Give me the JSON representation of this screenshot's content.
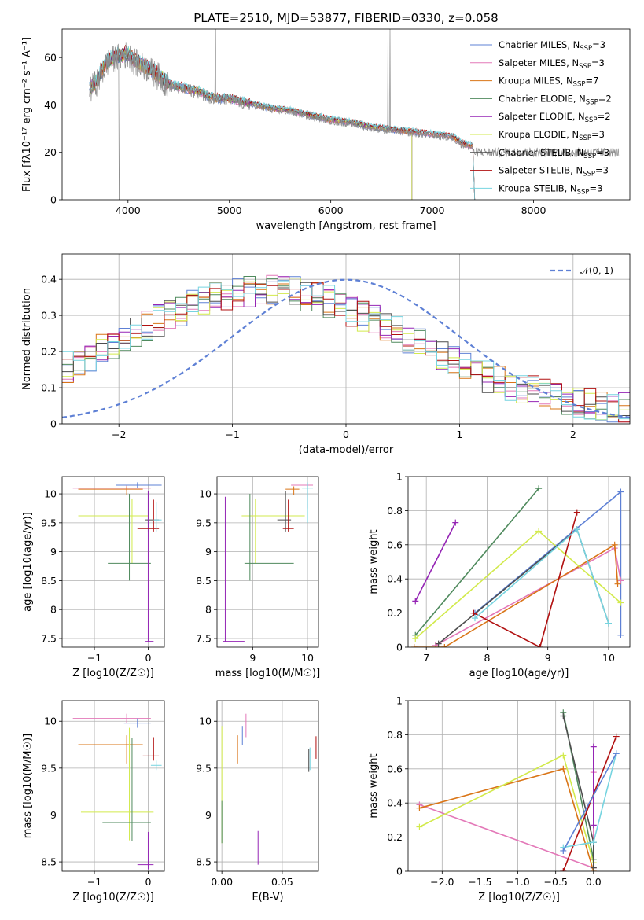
{
  "chart_data": [
    {
      "id": "spectrum",
      "type": "line",
      "title": "PLATE=2510, MJD=53877, FIBERID=0330, z=0.058",
      "xlabel": "wavelength [Angstrom, rest frame]",
      "ylabel": "Flux [fλ10⁻¹⁷ erg cm⁻² s⁻¹ A⁻¹]",
      "xlim": [
        3350,
        8950
      ],
      "ylim": [
        0,
        72
      ],
      "xticks": [
        4000,
        5000,
        6000,
        7000,
        8000
      ],
      "yticks": [
        0,
        20,
        40,
        60
      ],
      "grid": false,
      "legend": "top-right",
      "continuum": [
        [
          3620,
          46
        ],
        [
          3700,
          50
        ],
        [
          3800,
          58
        ],
        [
          3900,
          60
        ],
        [
          4000,
          61
        ],
        [
          4100,
          57
        ],
        [
          4200,
          55
        ],
        [
          4300,
          52
        ],
        [
          4400,
          48
        ],
        [
          4500,
          47
        ],
        [
          4600,
          46
        ],
        [
          4700,
          45
        ],
        [
          4800,
          43
        ],
        [
          4900,
          42
        ],
        [
          5000,
          42
        ],
        [
          5200,
          40
        ],
        [
          5400,
          38
        ],
        [
          5600,
          37
        ],
        [
          5800,
          35
        ],
        [
          6000,
          33
        ],
        [
          6200,
          32
        ],
        [
          6400,
          30
        ],
        [
          6600,
          29
        ],
        [
          6800,
          28
        ],
        [
          7000,
          27
        ],
        [
          7200,
          26
        ],
        [
          7300,
          23
        ],
        [
          7400,
          22
        ]
      ],
      "series": [
        {
          "name": "Chabrier MILES, N_SSP=3",
          "color": "#5e80d5",
          "end": 7400
        },
        {
          "name": "Salpeter MILES, N_SSP=3",
          "color": "#e378b8",
          "end": 7400
        },
        {
          "name": "Kroupa MILES, N_SSP=7",
          "color": "#d97416",
          "end": 7400
        },
        {
          "name": "Chabrier ELODIE, N_SSP=2",
          "color": "#4f8a5d",
          "end": 6800
        },
        {
          "name": "Salpeter ELODIE, N_SSP=2",
          "color": "#9525b5",
          "end": 6800
        },
        {
          "name": "Kroupa ELODIE, N_SSP=3",
          "color": "#d2ea4c",
          "end": 6800
        },
        {
          "name": "Chabrier STELIB, N_SSP=3",
          "color": "#4d4d4d",
          "end": 7400
        },
        {
          "name": "Salpeter STELIB, N_SSP=3",
          "color": "#b11010",
          "end": 7400
        },
        {
          "name": "Kroupa STELIB, N_SSP=3",
          "color": "#76d4e0",
          "end": 7400
        }
      ]
    },
    {
      "id": "residuals",
      "type": "line",
      "xlabel": "(data-model)/error",
      "ylabel": "Normed distribution",
      "xlim": [
        -2.5,
        2.5
      ],
      "ylim": [
        0,
        0.47
      ],
      "xticks": [
        -2,
        -1,
        0,
        1,
        2
      ],
      "yticks": [
        0.0,
        0.1,
        0.2,
        0.3,
        0.4
      ],
      "grid": true,
      "legend": "top-right",
      "gaussian_label": "𝒩(0, 1)",
      "gaussian_color": "#5e80d5"
    },
    {
      "id": "z-age",
      "type": "scatter",
      "xlabel": "Z [log10(Z/Z☉)]",
      "ylabel": "age  [log10(age/yr)]",
      "xlim": [
        -1.6,
        0.3
      ],
      "ylim": [
        7.35,
        10.3
      ],
      "xticks": [
        -1,
        0
      ],
      "yticks": [
        7.5,
        8.0,
        8.5,
        9.0,
        9.5,
        10.0
      ],
      "grid": true
    },
    {
      "id": "mass-age",
      "type": "scatter",
      "xlabel": "mass [log10(M/M☉)]",
      "xlim": [
        8.35,
        10.2
      ],
      "ylim": [
        7.35,
        10.3
      ],
      "xticks": [
        9,
        10
      ],
      "yticks": [
        7.5,
        8.0,
        8.5,
        9.0,
        9.5,
        10.0
      ],
      "grid": true
    },
    {
      "id": "age-weight",
      "type": "line",
      "xlabel": "age  [log10(age/yr)]",
      "ylabel": "mass weight",
      "xlim": [
        6.7,
        10.35
      ],
      "ylim": [
        0,
        1
      ],
      "xticks": [
        7,
        8,
        9,
        10
      ],
      "yticks": [
        0.0,
        0.2,
        0.4,
        0.6,
        0.8,
        1.0
      ],
      "grid": true,
      "series": [
        {
          "color": "#5e80d5",
          "x": [
            7.8,
            10.2,
            10.2
          ],
          "y": [
            0.2,
            0.91,
            0.07
          ]
        },
        {
          "color": "#e378b8",
          "x": [
            7.15,
            10.1,
            10.2
          ],
          "y": [
            0.01,
            0.58,
            0.39
          ]
        },
        {
          "color": "#d97416",
          "x": [
            6.8,
            7.3,
            10.1,
            10.15
          ],
          "y": [
            0.0,
            0.0,
            0.6,
            0.37
          ]
        },
        {
          "color": "#4f8a5d",
          "x": [
            6.82,
            8.85
          ],
          "y": [
            0.07,
            0.93
          ]
        },
        {
          "color": "#9525b5",
          "x": [
            6.82,
            7.48
          ],
          "y": [
            0.27,
            0.73
          ]
        },
        {
          "color": "#d2ea4c",
          "x": [
            6.82,
            8.85,
            10.2
          ],
          "y": [
            0.05,
            0.68,
            0.26
          ]
        },
        {
          "color": "#4d4d4d",
          "x": [
            7.2,
            9.48,
            10.0
          ],
          "y": [
            0.02,
            0.69,
            0.14
          ]
        },
        {
          "color": "#b11010",
          "x": [
            7.78,
            8.87,
            9.48
          ],
          "y": [
            0.2,
            0.0,
            0.79
          ]
        },
        {
          "color": "#76d4e0",
          "x": [
            7.8,
            9.48,
            10.0
          ],
          "y": [
            0.17,
            0.69,
            0.14
          ]
        }
      ]
    },
    {
      "id": "z-mass",
      "type": "scatter",
      "xlabel": "Z [log10(Z/Z☉)]",
      "ylabel": "mass [log10(M/M☉)]",
      "xlim": [
        -1.6,
        0.3
      ],
      "ylim": [
        8.4,
        10.22
      ],
      "xticks": [
        -1,
        0
      ],
      "yticks": [
        8.5,
        9.0,
        9.5,
        10.0
      ],
      "grid": true
    },
    {
      "id": "ebv-mass",
      "type": "scatter",
      "xlabel": "E(B-V)",
      "xlim": [
        -0.004,
        0.08
      ],
      "ylim": [
        8.4,
        10.22
      ],
      "xticks": [
        0.0,
        0.05
      ],
      "xtick_labels": [
        "0.00",
        "0.05"
      ],
      "yticks": [
        8.5,
        9.0,
        9.5,
        10.0
      ],
      "grid": true
    },
    {
      "id": "z-weight",
      "type": "line",
      "xlabel": "Z [log10(Z/Z☉)]",
      "ylabel": "mass weight",
      "xlim": [
        -2.45,
        0.48
      ],
      "ylim": [
        0,
        1
      ],
      "xticks": [
        -2.0,
        -1.5,
        -1.0,
        -0.5,
        0.0
      ],
      "xtick_labels": [
        "−2.0",
        "−1.5",
        "−1.0",
        "−0.5",
        "0.0"
      ],
      "yticks": [
        0.0,
        0.2,
        0.4,
        0.6,
        0.8,
        1.0
      ],
      "grid": true,
      "series": [
        {
          "color": "#e378b8",
          "x": [
            -2.3,
            0.0,
            0.0
          ],
          "y": [
            0.39,
            0.02,
            0.58
          ]
        },
        {
          "color": "#d97416",
          "x": [
            -2.3,
            -0.4,
            0.0
          ],
          "y": [
            0.37,
            0.6,
            0.0
          ]
        },
        {
          "color": "#d2ea4c",
          "x": [
            -2.3,
            -0.4,
            0.0
          ],
          "y": [
            0.26,
            0.68,
            0.05
          ]
        },
        {
          "color": "#4f8a5d",
          "x": [
            -0.4,
            0.0
          ],
          "y": [
            0.93,
            0.07
          ]
        },
        {
          "color": "#4d4d4d",
          "x": [
            -0.4,
            0.0,
            0.0
          ],
          "y": [
            0.91,
            0.17,
            0.02
          ]
        },
        {
          "color": "#9525b5",
          "x": [
            0.0,
            0.0
          ],
          "y": [
            0.73,
            0.27
          ]
        },
        {
          "color": "#b11010",
          "x": [
            -0.4,
            0.3
          ],
          "y": [
            0.0,
            0.79
          ]
        },
        {
          "color": "#76d4e0",
          "x": [
            -0.4,
            0.0,
            0.3
          ],
          "y": [
            0.14,
            0.17,
            0.69
          ]
        },
        {
          "color": "#5e80d5",
          "x": [
            -0.4,
            0.3
          ],
          "y": [
            0.12,
            0.69
          ]
        }
      ]
    }
  ]
}
